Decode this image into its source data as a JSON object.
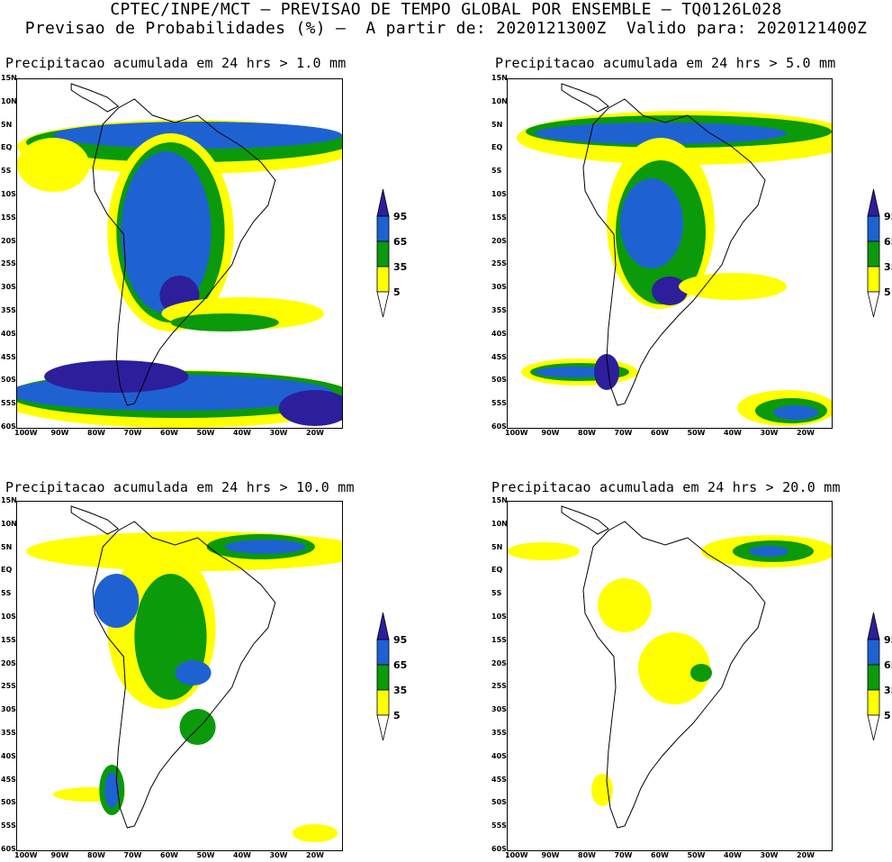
{
  "header": {
    "line1": "CPTEC/INPE/MCT – PREVISAO DE TEMPO GLOBAL POR ENSEMBLE – TQ0126L028",
    "line2": "Previsao de Probabilidades (%) –  A partir de: 2020121300Z  Valido para: 2020121400Z"
  },
  "panels": [
    {
      "title": "Precipitacao acumulada em 24 hrs > 1.0 mm"
    },
    {
      "title": "Precipitacao acumulada em 24 hrs > 5.0 mm"
    },
    {
      "title": "Precipitacao acumulada em 24 hrs > 10.0 mm"
    },
    {
      "title": "Precipitacao acumulada em 24 hrs > 20.0 mm"
    }
  ],
  "lat_ticks": [
    "15N",
    "10N",
    "5N",
    "EQ",
    "5S",
    "10S",
    "15S",
    "20S",
    "25S",
    "30S",
    "35S",
    "40S",
    "45S",
    "50S",
    "55S",
    "60S"
  ],
  "lon_ticks": [
    "100W",
    "90W",
    "80W",
    "70W",
    "60W",
    "50W",
    "40W",
    "30W",
    "20W"
  ],
  "legend": {
    "labels": [
      "95",
      "65",
      "35",
      "5"
    ],
    "colors": {
      "c5": "#ffff00",
      "c35": "#0a9a0a",
      "c65": "#1e62d2",
      "c95": "#2d1e9c"
    }
  }
}
